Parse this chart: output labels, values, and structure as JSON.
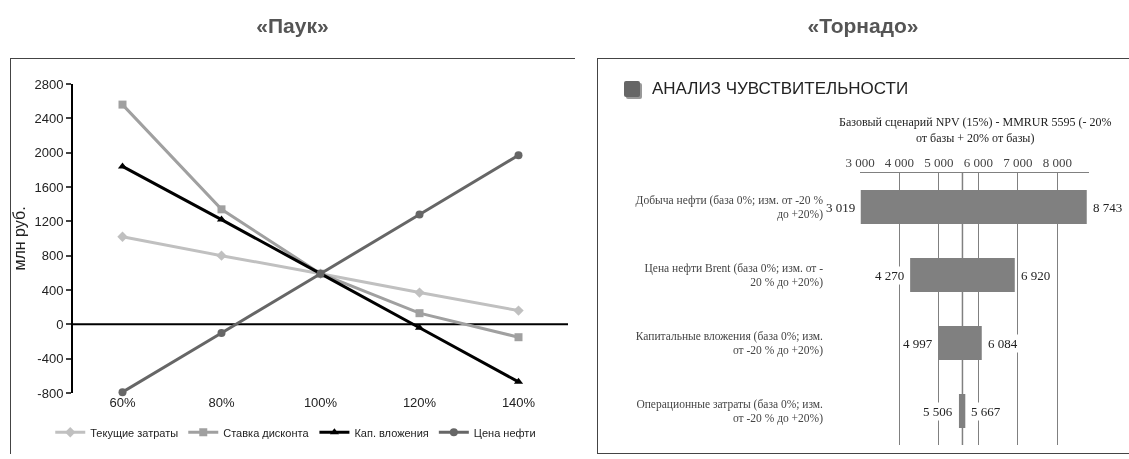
{
  "chart_data": [
    {
      "type": "line",
      "title": "«Паук»",
      "ylabel": "млн руб.",
      "categories": [
        "60%",
        "80%",
        "100%",
        "120%",
        "140%"
      ],
      "series": [
        {
          "name": "Текущие затраты",
          "color": "#c0c0c0",
          "marker": "diamond",
          "values": [
            1020,
            800,
            590,
            370,
            160
          ]
        },
        {
          "name": "Ставка дисконта",
          "color": "#a0a0a0",
          "marker": "square",
          "values": [
            2560,
            1340,
            590,
            130,
            -150
          ]
        },
        {
          "name": "Кап. вложения",
          "color": "#000000",
          "marker": "triangle",
          "values": [
            1840,
            1220,
            590,
            -40,
            -670
          ]
        },
        {
          "name": "Цена нефти",
          "color": "#666666",
          "marker": "circle",
          "values": [
            -790,
            -100,
            590,
            1280,
            1970
          ]
        }
      ],
      "ylim": [
        -800,
        2800
      ],
      "yticks": [
        -800,
        -400,
        0,
        400,
        800,
        1200,
        1600,
        2000,
        2400,
        2800
      ],
      "ref_lines": [
        {
          "axis": "y",
          "value": 0,
          "color": "#000000"
        }
      ],
      "grid": false,
      "legend": "bottom",
      "line_style": "solid"
    },
    {
      "type": "bar",
      "orientation": "horizontal",
      "title": "«Торнадо»",
      "subtitle": "АНАЛИЗ ЧУВСТВИТЕЛЬНОСТИ",
      "xlabel": "Базовый сценарий NPV (15%) - MMRUR 5595 (- 20% от базы + 20% от базы)",
      "categories": [
        "Добыча нефти (база 0%; изм. от -20 % до +20%)",
        "Цена нефти Brent (база 0%; изм. от - 20 % до +20%)",
        "Капитальные вложения (база 0%; изм. от -20 % до +20%)",
        "Операционные затраты (база 0%; изм. от -20 % до +20%)"
      ],
      "base": [
        3019,
        4270,
        4997,
        5506
      ],
      "values": [
        5724,
        2650,
        1087,
        161
      ],
      "color": "#808080",
      "xlim": [
        3000,
        8800
      ],
      "xticks": [
        {
          "value": 3000,
          "label": "3 000"
        },
        {
          "value": 4000,
          "label": "4 000"
        },
        {
          "value": 5000,
          "label": "5 000"
        },
        {
          "value": 6000,
          "label": "6 000"
        },
        {
          "value": 7000,
          "label": "7 000"
        },
        {
          "value": 8000,
          "label": "8 000"
        }
      ],
      "ref_lines": [
        {
          "axis": "x",
          "value": 5595,
          "color": "#808080"
        }
      ],
      "annotations": [
        {
          "text": "3 019",
          "x": 3019,
          "y": "Добыча нефти (база 0%; изм. от -20 % до +20%)"
        },
        {
          "text": "8 743",
          "x": 8743,
          "y": "Добыча нефти (база 0%; изм. от -20 % до +20%)"
        },
        {
          "text": "4 270",
          "x": 4270,
          "y": "Цена нефти Brent (база 0%; изм. от - 20 % до +20%)"
        },
        {
          "text": "6 920",
          "x": 6920,
          "y": "Цена нефти Brent (база 0%; изм. от - 20 % до +20%)"
        },
        {
          "text": "4 997",
          "x": 4997,
          "y": "Капитальные вложения (база 0%; изм. от -20 % до +20%)"
        },
        {
          "text": "6 084",
          "x": 6084,
          "y": "Капитальные вложения (база 0%; изм. от -20 % до +20%)"
        },
        {
          "text": "5 506",
          "x": 5506,
          "y": "Операционные затраты (база 0%; изм. от -20 % до +20%)"
        },
        {
          "text": "5 667",
          "x": 5667,
          "y": "Операционные затраты (база 0%; изм. от -20 % до +20%)"
        }
      ],
      "grid": "x",
      "legend": false
    }
  ]
}
